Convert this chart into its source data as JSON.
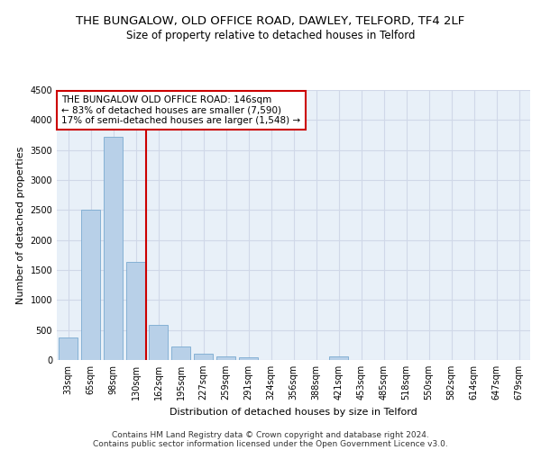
{
  "title1": "THE BUNGALOW, OLD OFFICE ROAD, DAWLEY, TELFORD, TF4 2LF",
  "title2": "Size of property relative to detached houses in Telford",
  "xlabel": "Distribution of detached houses by size in Telford",
  "ylabel": "Number of detached properties",
  "footnote1": "Contains HM Land Registry data © Crown copyright and database right 2024.",
  "footnote2": "Contains public sector information licensed under the Open Government Licence v3.0.",
  "categories": [
    "33sqm",
    "65sqm",
    "98sqm",
    "130sqm",
    "162sqm",
    "195sqm",
    "227sqm",
    "259sqm",
    "291sqm",
    "324sqm",
    "356sqm",
    "388sqm",
    "421sqm",
    "453sqm",
    "485sqm",
    "518sqm",
    "550sqm",
    "582sqm",
    "614sqm",
    "647sqm",
    "679sqm"
  ],
  "values": [
    370,
    2500,
    3720,
    1630,
    580,
    230,
    100,
    60,
    40,
    0,
    0,
    0,
    60,
    0,
    0,
    0,
    0,
    0,
    0,
    0,
    0
  ],
  "bar_color": "#b8d0e8",
  "bar_edge_color": "#7aaad0",
  "vline_color": "#cc0000",
  "vline_x": 3.45,
  "annotation_text_line1": "THE BUNGALOW OLD OFFICE ROAD: 146sqm",
  "annotation_text_line2": "← 83% of detached houses are smaller (7,590)",
  "annotation_text_line3": "17% of semi-detached houses are larger (1,548) →",
  "annotation_box_color": "#cc0000",
  "ylim": [
    0,
    4500
  ],
  "yticks": [
    0,
    500,
    1000,
    1500,
    2000,
    2500,
    3000,
    3500,
    4000,
    4500
  ],
  "grid_color": "#d0d8e8",
  "bg_color": "#e8f0f8",
  "title1_fontsize": 9.5,
  "title2_fontsize": 8.5,
  "axis_label_fontsize": 8,
  "tick_fontsize": 7,
  "footnote_fontsize": 6.5,
  "annot_fontsize": 7.5
}
